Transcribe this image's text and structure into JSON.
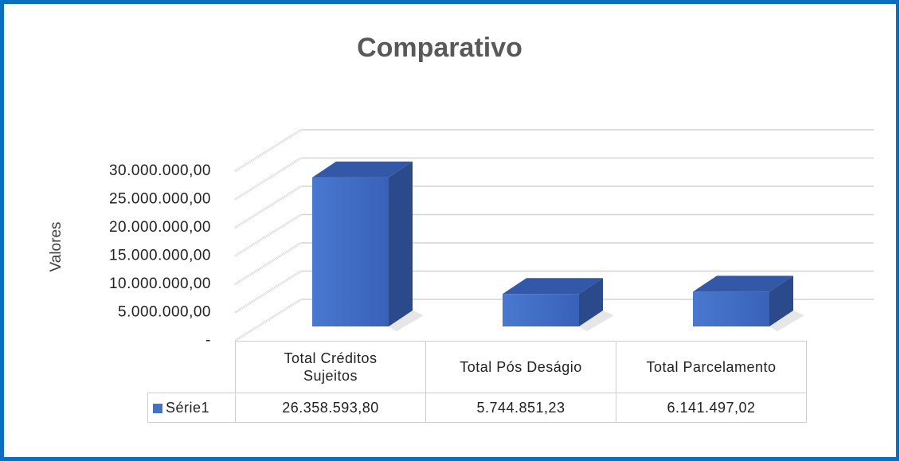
{
  "chart_data": {
    "type": "bar",
    "title": "Comparativo",
    "y_label": "Valores",
    "categories": [
      "Total Créditos Sujeitos",
      "Total Pós Deságio",
      "Total Parcelamento"
    ],
    "series": [
      {
        "name": "Série1",
        "color": "#4472c4",
        "values": [
          26358593.8,
          5744851.23,
          6141497.02
        ],
        "value_labels": [
          "26.358.593,80",
          "5.744.851,23",
          "6.141.497,02"
        ]
      }
    ],
    "ylim": [
      0,
      30000000
    ],
    "yticks": [
      {
        "value": 0,
        "label": "-"
      },
      {
        "value": 5000000,
        "label": "5.000.000,00"
      },
      {
        "value": 10000000,
        "label": "10.000.000,00"
      },
      {
        "value": 15000000,
        "label": "15.000.000,00"
      },
      {
        "value": 20000000,
        "label": "20.000.000,00"
      },
      {
        "value": 25000000,
        "label": "25.000.000,00"
      },
      {
        "value": 30000000,
        "label": "30.000.000,00"
      }
    ],
    "grid": true
  }
}
